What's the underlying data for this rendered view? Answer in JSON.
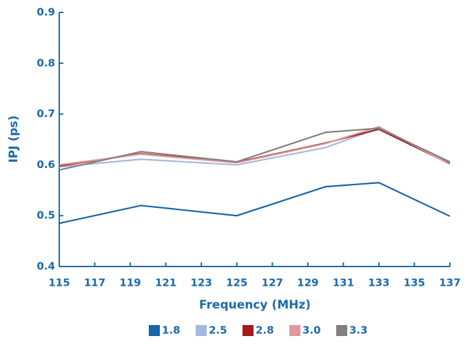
{
  "chart_data": {
    "type": "line",
    "x_label": "Frequency (MHz)",
    "y_label": "IPJ (ps)",
    "x": [
      115,
      119.6,
      125,
      130,
      133,
      137
    ],
    "series": [
      {
        "name": "1.8",
        "color": "#1565a8",
        "values": [
          0.485,
          0.52,
          0.5,
          0.557,
          0.565,
          0.499
        ]
      },
      {
        "name": "2.5",
        "color": "#a6b8dd",
        "values": [
          0.596,
          0.611,
          0.6,
          0.634,
          0.672,
          0.605
        ]
      },
      {
        "name": "2.8",
        "color": "#a31b1f",
        "values": [
          0.598,
          0.622,
          0.605,
          0.643,
          0.67,
          0.602
        ]
      },
      {
        "name": "3.0",
        "color": "#e0989a",
        "values": [
          0.6,
          0.621,
          0.604,
          0.642,
          0.675,
          0.601
        ]
      },
      {
        "name": "3.3",
        "color": "#808080",
        "values": [
          0.59,
          0.626,
          0.606,
          0.664,
          0.672,
          0.606
        ]
      }
    ],
    "xlim": [
      115,
      137
    ],
    "xticks": [
      115,
      117,
      119,
      121,
      123,
      125,
      127,
      129,
      131,
      133,
      135,
      137
    ],
    "ylim": [
      0.4,
      0.9
    ],
    "yticks": [
      0.4,
      0.5,
      0.6,
      0.7,
      0.8,
      0.9
    ],
    "legend": "bottom"
  }
}
